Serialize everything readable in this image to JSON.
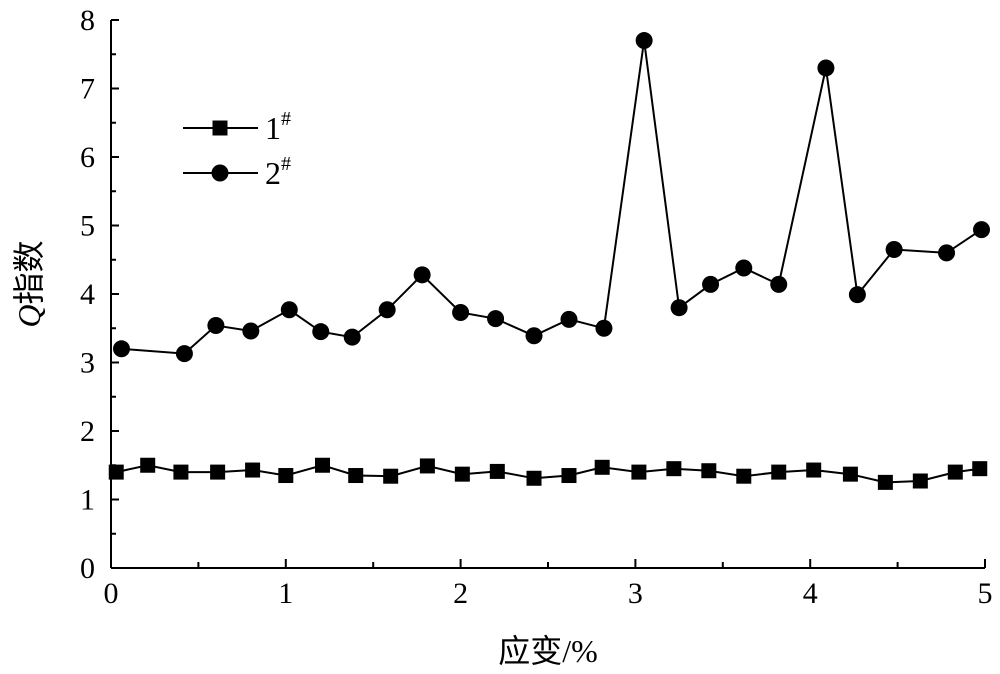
{
  "chart_data": {
    "type": "line",
    "xlabel": "应变/%",
    "ylabel_italic": "Q",
    "ylabel_rest": "指数",
    "xlim": [
      0,
      5
    ],
    "ylim": [
      0,
      8
    ],
    "x_ticks": [
      "0",
      "1",
      "2",
      "3",
      "4",
      "5"
    ],
    "y_ticks": [
      "0",
      "1",
      "2",
      "3",
      "4",
      "5",
      "6",
      "7",
      "8"
    ],
    "grid": false,
    "legend_position": "upper-left",
    "series": [
      {
        "name": "1",
        "name_sup": "#",
        "marker": "square",
        "points": [
          [
            0.03,
            1.4
          ],
          [
            0.21,
            1.5
          ],
          [
            0.4,
            1.4
          ],
          [
            0.61,
            1.4
          ],
          [
            0.81,
            1.43
          ],
          [
            1.0,
            1.35
          ],
          [
            1.21,
            1.5
          ],
          [
            1.4,
            1.35
          ],
          [
            1.6,
            1.34
          ],
          [
            1.81,
            1.49
          ],
          [
            2.01,
            1.37
          ],
          [
            2.21,
            1.41
          ],
          [
            2.42,
            1.31
          ],
          [
            2.62,
            1.35
          ],
          [
            2.81,
            1.47
          ],
          [
            3.02,
            1.4
          ],
          [
            3.22,
            1.45
          ],
          [
            3.42,
            1.42
          ],
          [
            3.62,
            1.34
          ],
          [
            3.82,
            1.4
          ],
          [
            4.02,
            1.43
          ],
          [
            4.23,
            1.37
          ],
          [
            4.43,
            1.25
          ],
          [
            4.63,
            1.27
          ],
          [
            4.83,
            1.4
          ],
          [
            4.97,
            1.45
          ]
        ]
      },
      {
        "name": "2",
        "name_sup": "#",
        "marker": "circle",
        "points": [
          [
            0.06,
            3.2
          ],
          [
            0.42,
            3.13
          ],
          [
            0.6,
            3.54
          ],
          [
            0.8,
            3.46
          ],
          [
            1.02,
            3.77
          ],
          [
            1.2,
            3.45
          ],
          [
            1.38,
            3.37
          ],
          [
            1.58,
            3.77
          ],
          [
            1.78,
            4.28
          ],
          [
            2.0,
            3.73
          ],
          [
            2.2,
            3.64
          ],
          [
            2.42,
            3.39
          ],
          [
            2.62,
            3.63
          ],
          [
            2.82,
            3.5
          ],
          [
            3.05,
            7.7
          ],
          [
            3.25,
            3.8
          ],
          [
            3.43,
            4.14
          ],
          [
            3.62,
            4.38
          ],
          [
            3.82,
            4.14
          ],
          [
            4.09,
            7.3
          ],
          [
            4.27,
            3.99
          ],
          [
            4.48,
            4.65
          ],
          [
            4.78,
            4.6
          ],
          [
            4.98,
            4.94
          ]
        ]
      }
    ]
  }
}
